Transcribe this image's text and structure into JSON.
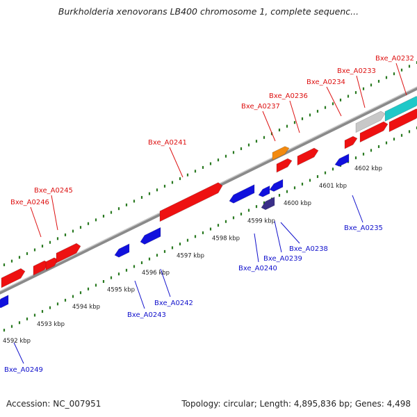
{
  "title": "Burkholderia xenovorans LB400 chromosome 1, complete sequenc...",
  "footer": {
    "accession": "Accession: NC_007951",
    "summary": "Topology: circular; Length: 4,895,836 bp; Genes: 4,498"
  },
  "colors": {
    "forward_gene": "#ee1111",
    "reverse_gene": "#1111dd",
    "highlight": "#f28a10",
    "unknown": "#c8c8c8",
    "rna": "#20c8c8",
    "reverse_dark": "#3a2f88",
    "tick": "#2a7a22",
    "backbone": "#8a8a8a",
    "forward_label": "#dd1111",
    "reverse_label": "#1111cc"
  },
  "kbp_labels": [
    "4592 kbp",
    "4593 kbp",
    "4594 kbp",
    "4595 kbp",
    "4596 kbp",
    "4597 kbp",
    "4598 kbp",
    "4599 kbp",
    "4600 kbp",
    "4601 kbp",
    "4602 kbp"
  ],
  "forward_labels": [
    "Bxe_A0246",
    "Bxe_A0245",
    "Bxe_A0241",
    "Bxe_A0237",
    "Bxe_A0236",
    "Bxe_A0234",
    "Bxe_A0233",
    "Bxe_A0232"
  ],
  "reverse_labels": [
    "Bxe_A0249",
    "Bxe_A0243",
    "Bxe_A0242",
    "Bxe_A0240",
    "Bxe_A0239",
    "Bxe_A0238",
    "Bxe_A0235"
  ]
}
